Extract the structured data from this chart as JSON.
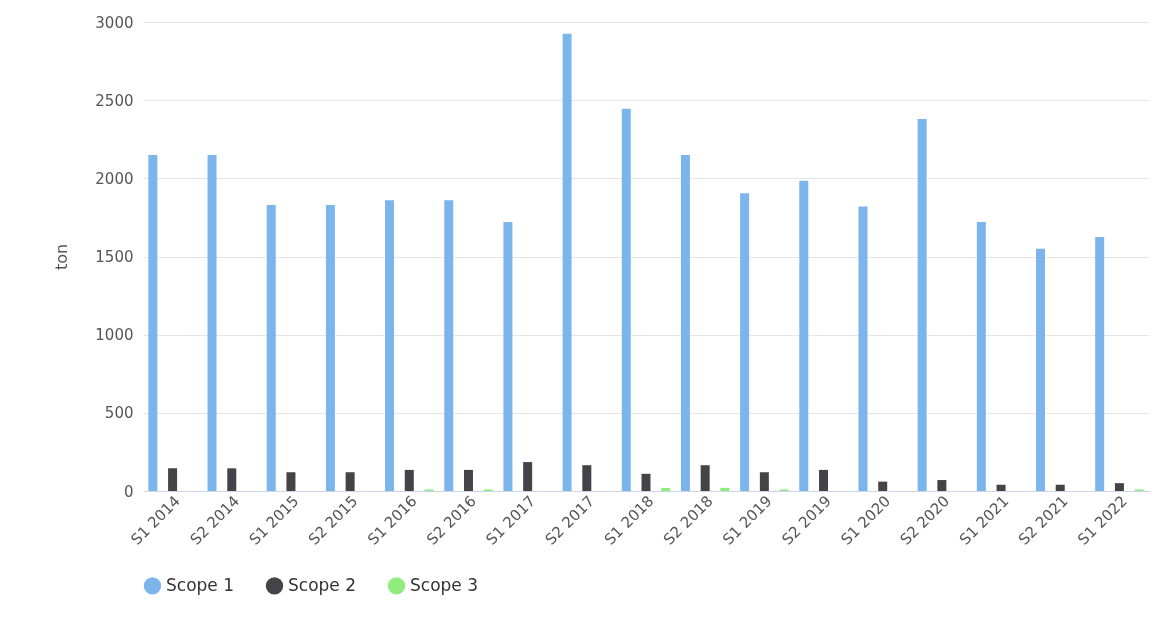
{
  "chart_data": {
    "type": "bar",
    "ylabel": "ton",
    "categories": [
      "S1 2014",
      "S2 2014",
      "S1 2015",
      "S2 2015",
      "S1 2016",
      "S2 2016",
      "S1 2017",
      "S2 2017",
      "S1 2018",
      "S2 2018",
      "S1 2019",
      "S2 2019",
      "S1 2020",
      "S2 2020",
      "S1 2021",
      "S2 2021",
      "S1 2022"
    ],
    "series": [
      {
        "name": "Scope 1",
        "color": "#7cb5ec",
        "values": [
          2150,
          2150,
          1830,
          1830,
          1860,
          1860,
          1720,
          2925,
          2445,
          2150,
          1905,
          1985,
          1820,
          2380,
          1720,
          1550,
          1625
        ]
      },
      {
        "name": "Scope 2",
        "color": "#434348",
        "values": [
          145,
          145,
          120,
          120,
          135,
          135,
          185,
          165,
          110,
          165,
          120,
          135,
          60,
          70,
          40,
          40,
          50
        ]
      },
      {
        "name": "Scope 3",
        "color": "#90ed7d",
        "values": [
          null,
          null,
          null,
          null,
          10,
          10,
          null,
          null,
          20,
          20,
          10,
          null,
          null,
          null,
          null,
          null,
          10
        ]
      }
    ],
    "ylim": [
      0,
      3000
    ],
    "yticks": [
      0,
      500,
      1000,
      1500,
      2000,
      2500,
      3000
    ],
    "grid": "y",
    "legend": "bottom"
  }
}
